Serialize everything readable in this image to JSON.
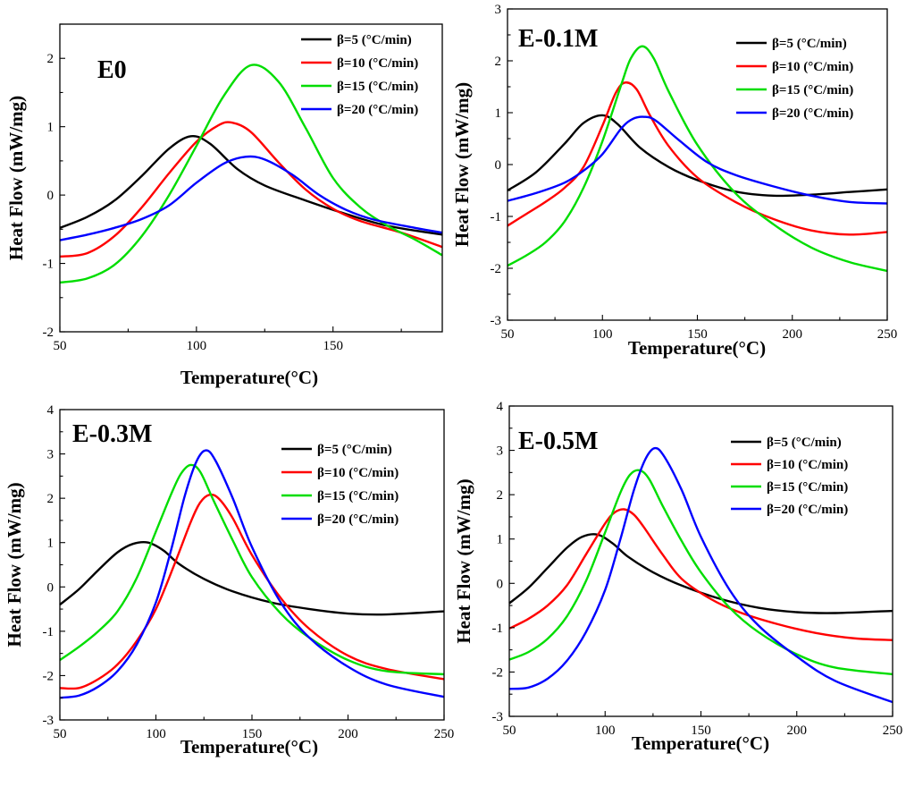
{
  "chart_data": [
    {
      "type": "line",
      "title": "E0",
      "xlabel": "Temperature(°C)",
      "ylabel": "Heat Flow (mW/mg)",
      "xlim": [
        50,
        190
      ],
      "ylim": [
        -2,
        2.5
      ],
      "xticks": [
        "50",
        "100",
        "150"
      ],
      "yticks": [
        "-2",
        "-1",
        "0",
        "1",
        "2"
      ],
      "legend_position": "top-right",
      "series": [
        {
          "name": "β=5 (°C/min)",
          "color": "#000000",
          "x": [
            50,
            60,
            70,
            80,
            90,
            98,
            105,
            115,
            125,
            140,
            155,
            170,
            190
          ],
          "y": [
            -0.48,
            -0.32,
            -0.08,
            0.28,
            0.68,
            0.86,
            0.75,
            0.38,
            0.14,
            -0.08,
            -0.28,
            -0.45,
            -0.58
          ]
        },
        {
          "name": "β=10 (°C/min)",
          "color": "#ff0000",
          "x": [
            50,
            60,
            70,
            80,
            90,
            100,
            108,
            113,
            120,
            130,
            140,
            150,
            160,
            175,
            190
          ],
          "y": [
            -0.9,
            -0.85,
            -0.6,
            -0.18,
            0.32,
            0.78,
            1.02,
            1.06,
            0.92,
            0.48,
            0.08,
            -0.2,
            -0.38,
            -0.55,
            -0.76
          ]
        },
        {
          "name": "β=15 (°C/min)",
          "color": "#00dd00",
          "x": [
            50,
            60,
            70,
            80,
            90,
            100,
            110,
            120,
            130,
            140,
            150,
            160,
            170,
            180,
            190
          ],
          "y": [
            -1.28,
            -1.22,
            -1.02,
            -0.6,
            0.0,
            0.72,
            1.45,
            1.9,
            1.66,
            0.98,
            0.25,
            -0.18,
            -0.45,
            -0.65,
            -0.88
          ]
        },
        {
          "name": "β=20 (°C/min)",
          "color": "#0000ff",
          "x": [
            50,
            60,
            70,
            80,
            90,
            100,
            110,
            118,
            125,
            135,
            145,
            155,
            165,
            180,
            190
          ],
          "y": [
            -0.66,
            -0.58,
            -0.48,
            -0.35,
            -0.15,
            0.18,
            0.46,
            0.56,
            0.52,
            0.3,
            0.0,
            -0.22,
            -0.36,
            -0.48,
            -0.55
          ]
        }
      ]
    },
    {
      "type": "line",
      "title": "E-0.1M",
      "xlabel": "Temperature(°C)",
      "ylabel": "Heat Flow (mW/mg)",
      "xlim": [
        50,
        250
      ],
      "ylim": [
        -3,
        3
      ],
      "xticks": [
        "50",
        "100",
        "150",
        "200",
        "250"
      ],
      "yticks": [
        "-3",
        "-2",
        "-1",
        "0",
        "1",
        "2",
        "3"
      ],
      "legend_position": "top-right",
      "series": [
        {
          "name": "β=5 (°C/min)",
          "color": "#000000",
          "x": [
            50,
            65,
            80,
            90,
            100,
            108,
            120,
            135,
            150,
            170,
            190,
            210,
            230,
            250
          ],
          "y": [
            -0.5,
            -0.15,
            0.4,
            0.8,
            0.95,
            0.78,
            0.32,
            -0.05,
            -0.3,
            -0.52,
            -0.6,
            -0.58,
            -0.53,
            -0.48
          ]
        },
        {
          "name": "β=10 (°C/min)",
          "color": "#ff0000",
          "x": [
            50,
            60,
            70,
            80,
            90,
            100,
            107,
            112,
            118,
            125,
            135,
            150,
            170,
            190,
            210,
            230,
            250
          ],
          "y": [
            -1.18,
            -0.95,
            -0.72,
            -0.45,
            -0.05,
            0.75,
            1.38,
            1.58,
            1.45,
            0.95,
            0.35,
            -0.25,
            -0.72,
            -1.05,
            -1.27,
            -1.35,
            -1.3
          ]
        },
        {
          "name": "β=15 (°C/min)",
          "color": "#00dd00",
          "x": [
            50,
            60,
            70,
            80,
            90,
            100,
            110,
            115,
            121,
            127,
            135,
            150,
            170,
            190,
            210,
            230,
            250
          ],
          "y": [
            -1.95,
            -1.75,
            -1.5,
            -1.1,
            -0.45,
            0.45,
            1.55,
            2.05,
            2.28,
            2.05,
            1.4,
            0.38,
            -0.55,
            -1.15,
            -1.6,
            -1.88,
            -2.05
          ]
        },
        {
          "name": "β=20 (°C/min)",
          "color": "#0000ff",
          "x": [
            50,
            65,
            80,
            90,
            100,
            110,
            116,
            122,
            128,
            140,
            155,
            170,
            190,
            210,
            230,
            250
          ],
          "y": [
            -0.7,
            -0.55,
            -0.35,
            -0.12,
            0.2,
            0.7,
            0.88,
            0.92,
            0.85,
            0.48,
            0.05,
            -0.2,
            -0.42,
            -0.6,
            -0.72,
            -0.75
          ]
        }
      ]
    },
    {
      "type": "line",
      "title": "E-0.3M",
      "xlabel": "Temperature(°C)",
      "ylabel": "Heat Flow (mW/mg)",
      "xlim": [
        50,
        250
      ],
      "ylim": [
        -3,
        4
      ],
      "xticks": [
        "50",
        "100",
        "150",
        "200",
        "250"
      ],
      "yticks": [
        "-3",
        "-2",
        "-1",
        "0",
        "1",
        "2",
        "3",
        "4"
      ],
      "legend_position": "top-right",
      "series": [
        {
          "name": "β=5 (°C/min)",
          "color": "#000000",
          "x": [
            50,
            60,
            70,
            80,
            88,
            96,
            104,
            112,
            125,
            140,
            160,
            180,
            200,
            220,
            250
          ],
          "y": [
            -0.4,
            -0.05,
            0.38,
            0.78,
            0.97,
            1.0,
            0.82,
            0.52,
            0.18,
            -0.1,
            -0.35,
            -0.5,
            -0.6,
            -0.62,
            -0.55
          ]
        },
        {
          "name": "β=10 (°C/min)",
          "color": "#ff0000",
          "x": [
            50,
            60,
            70,
            80,
            90,
            100,
            110,
            118,
            123,
            128,
            133,
            140,
            150,
            165,
            180,
            200,
            220,
            250
          ],
          "y": [
            -2.28,
            -2.28,
            -2.08,
            -1.75,
            -1.22,
            -0.5,
            0.55,
            1.45,
            1.9,
            2.08,
            1.98,
            1.55,
            0.72,
            -0.25,
            -0.95,
            -1.55,
            -1.85,
            -2.08
          ]
        },
        {
          "name": "β=15 (°C/min)",
          "color": "#00dd00",
          "x": [
            50,
            60,
            70,
            80,
            90,
            100,
            108,
            113,
            118,
            123,
            130,
            140,
            150,
            165,
            180,
            200,
            220,
            250
          ],
          "y": [
            -1.65,
            -1.35,
            -1.0,
            -0.55,
            0.2,
            1.25,
            2.1,
            2.55,
            2.75,
            2.6,
            1.95,
            1.05,
            0.22,
            -0.6,
            -1.15,
            -1.65,
            -1.9,
            -1.97
          ]
        },
        {
          "name": "β=20 (°C/min)",
          "color": "#0000ff",
          "x": [
            50,
            60,
            70,
            80,
            90,
            100,
            108,
            115,
            121,
            126,
            131,
            140,
            150,
            165,
            180,
            200,
            220,
            250
          ],
          "y": [
            -2.5,
            -2.45,
            -2.25,
            -1.9,
            -1.3,
            -0.35,
            0.85,
            2.05,
            2.82,
            3.08,
            2.85,
            2.0,
            0.9,
            -0.35,
            -1.15,
            -1.8,
            -2.2,
            -2.48
          ]
        }
      ]
    },
    {
      "type": "line",
      "title": "E-0.5M",
      "xlabel": "Temperature(°C)",
      "ylabel": "Heat Flow (mW/mg)",
      "xlim": [
        50,
        250
      ],
      "ylim": [
        -3,
        4
      ],
      "xticks": [
        "50",
        "100",
        "150",
        "200",
        "250"
      ],
      "yticks": [
        "-3",
        "-2",
        "-1",
        "0",
        "1",
        "2",
        "3",
        "4"
      ],
      "legend_position": "top-right",
      "series": [
        {
          "name": "β=5 (°C/min)",
          "color": "#000000",
          "x": [
            50,
            60,
            70,
            80,
            88,
            96,
            104,
            112,
            125,
            140,
            160,
            180,
            200,
            220,
            250
          ],
          "y": [
            -0.45,
            -0.1,
            0.35,
            0.8,
            1.05,
            1.1,
            0.9,
            0.6,
            0.25,
            -0.05,
            -0.35,
            -0.55,
            -0.65,
            -0.67,
            -0.62
          ]
        },
        {
          "name": "β=10 (°C/min)",
          "color": "#ff0000",
          "x": [
            50,
            60,
            70,
            80,
            90,
            100,
            105,
            110,
            115,
            120,
            130,
            140,
            155,
            170,
            190,
            210,
            230,
            250
          ],
          "y": [
            -1.02,
            -0.8,
            -0.5,
            -0.05,
            0.65,
            1.35,
            1.6,
            1.67,
            1.55,
            1.28,
            0.65,
            0.1,
            -0.35,
            -0.65,
            -0.92,
            -1.12,
            -1.24,
            -1.28
          ]
        },
        {
          "name": "β=15 (°C/min)",
          "color": "#00dd00",
          "x": [
            50,
            60,
            70,
            80,
            90,
            100,
            108,
            113,
            118,
            123,
            130,
            140,
            150,
            165,
            180,
            200,
            220,
            250
          ],
          "y": [
            -1.72,
            -1.55,
            -1.25,
            -0.75,
            0.05,
            1.15,
            2.05,
            2.45,
            2.55,
            2.35,
            1.75,
            0.95,
            0.25,
            -0.55,
            -1.1,
            -1.6,
            -1.9,
            -2.05
          ]
        },
        {
          "name": "β=20 (°C/min)",
          "color": "#0000ff",
          "x": [
            50,
            60,
            70,
            80,
            90,
            100,
            108,
            115,
            121,
            126,
            131,
            140,
            150,
            165,
            180,
            200,
            220,
            250
          ],
          "y": [
            -2.38,
            -2.35,
            -2.15,
            -1.75,
            -1.1,
            -0.15,
            1.0,
            2.1,
            2.8,
            3.05,
            2.85,
            2.1,
            1.05,
            -0.15,
            -0.95,
            -1.65,
            -2.2,
            -2.68
          ]
        }
      ]
    }
  ]
}
